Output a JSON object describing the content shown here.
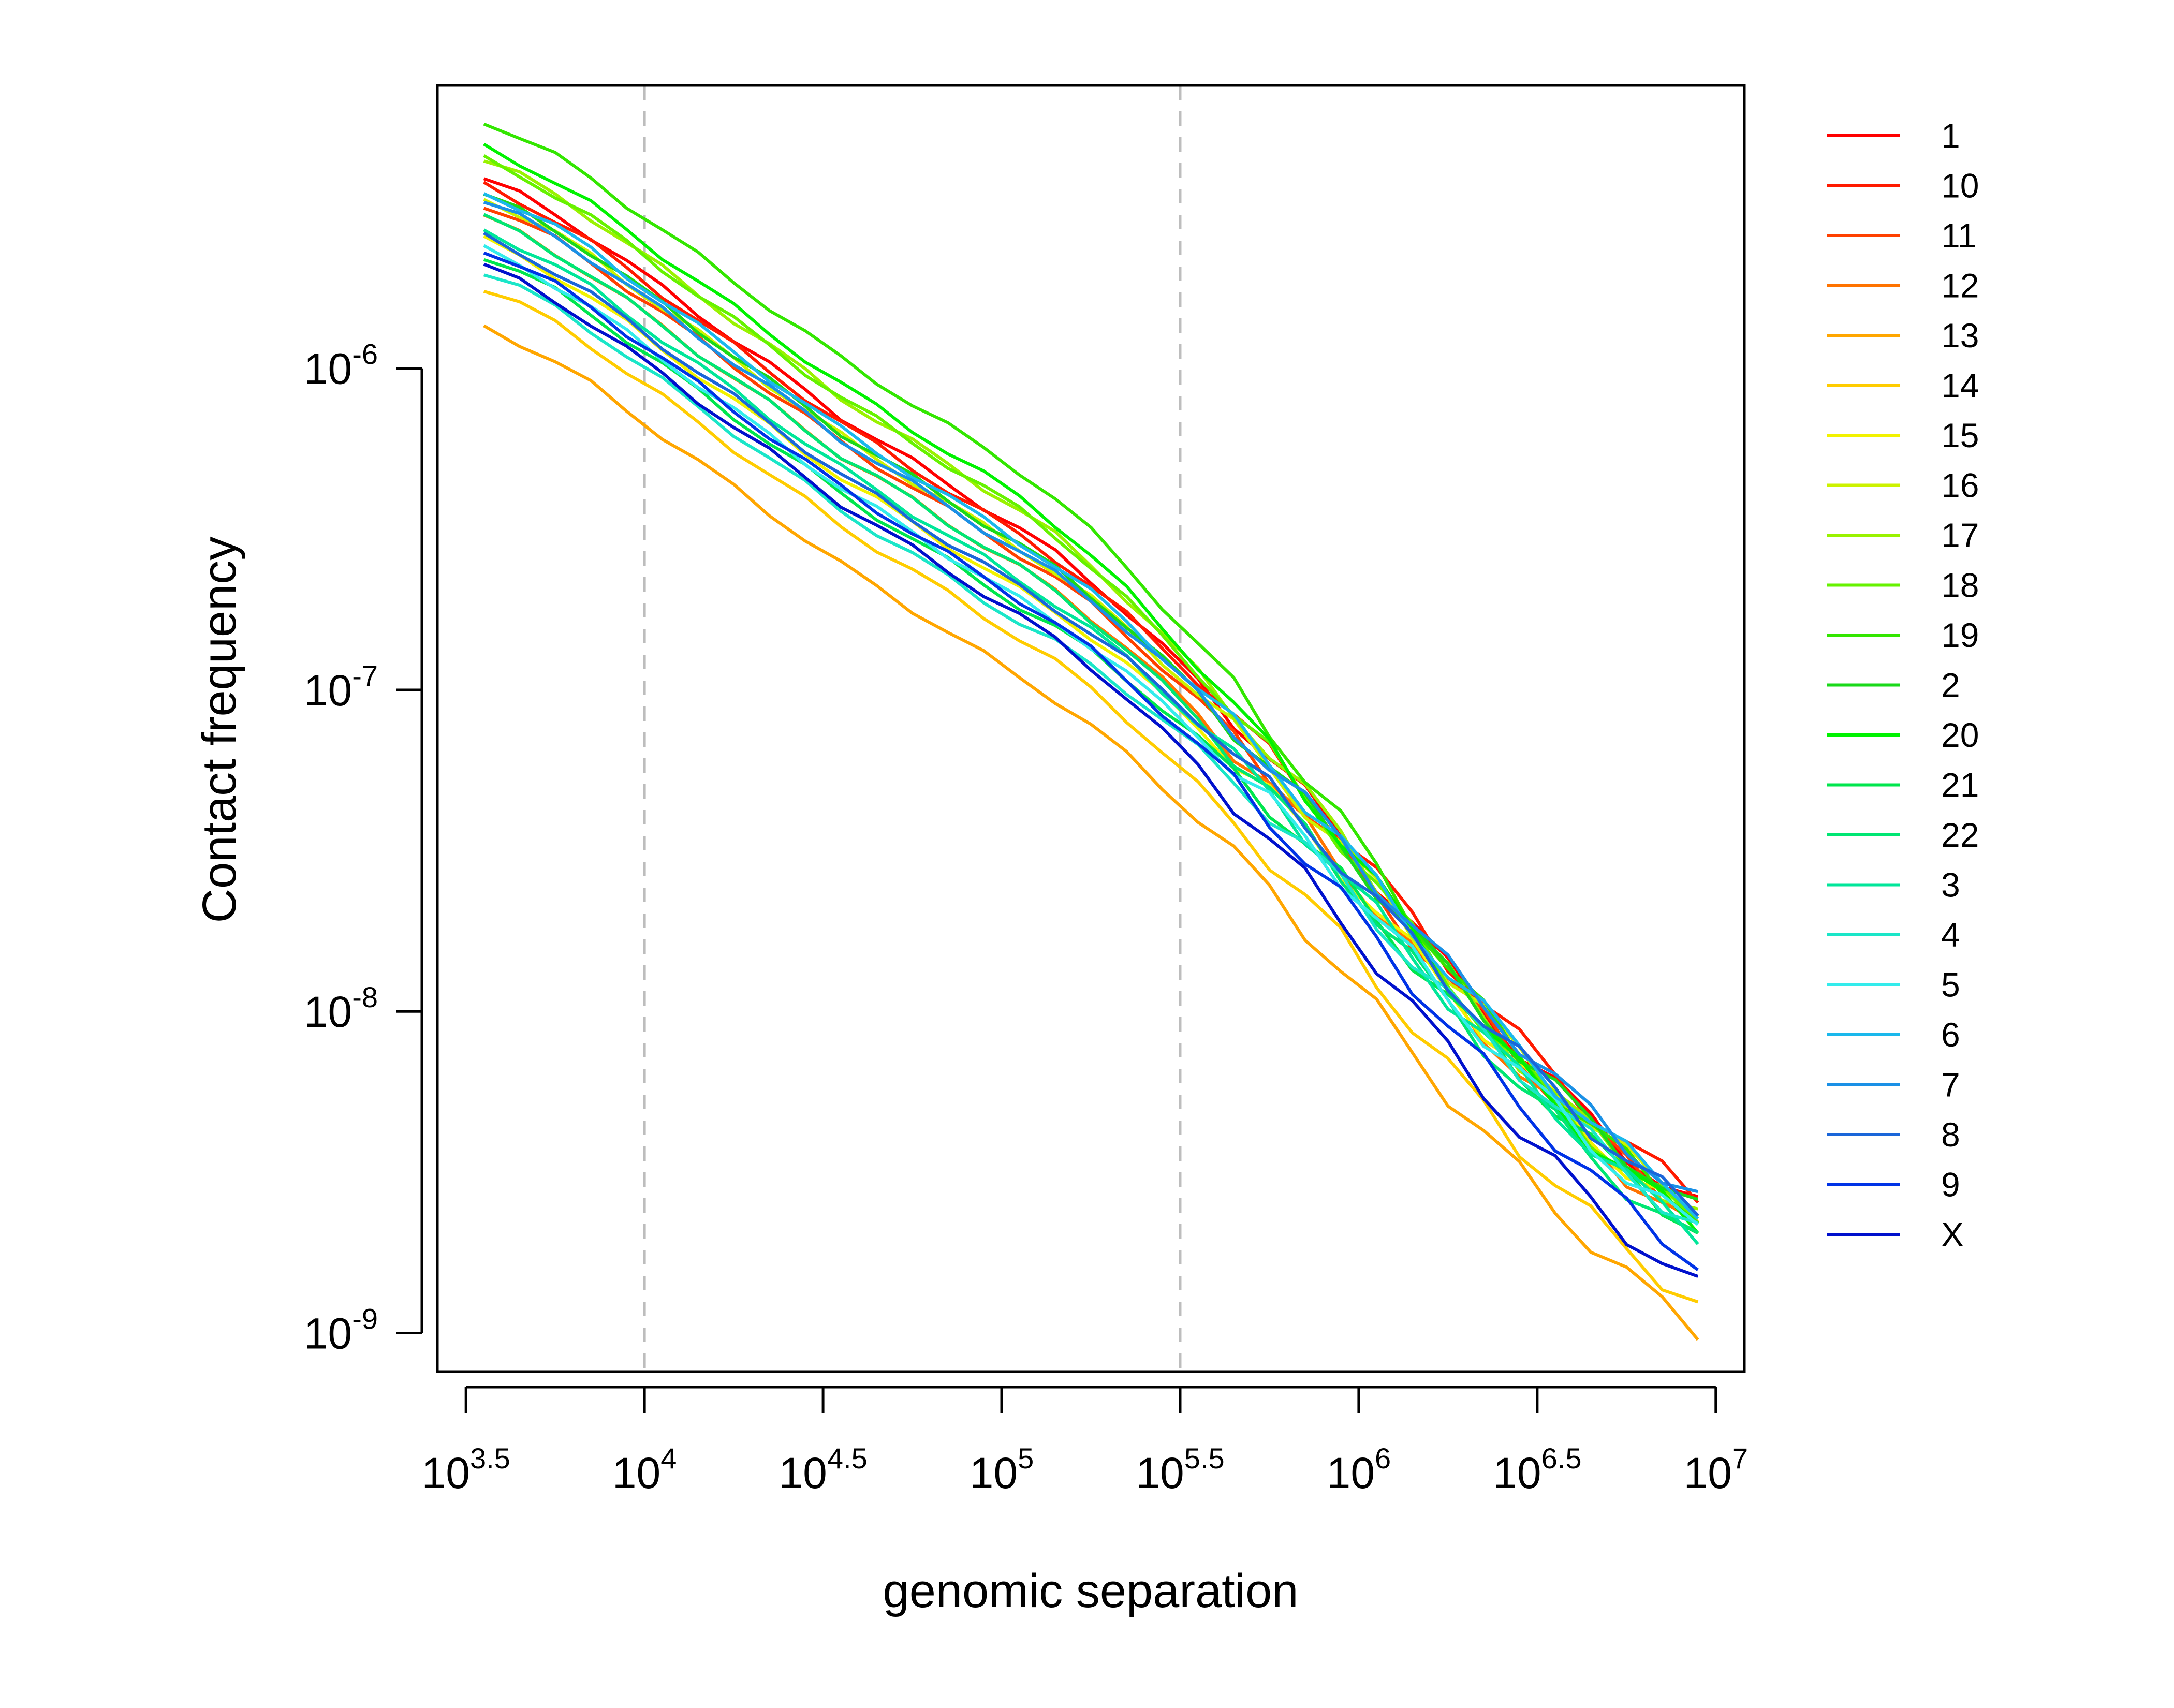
{
  "chart_data": {
    "type": "line",
    "title": "",
    "xlabel": "genomic separation",
    "ylabel": "Contact frequency",
    "x_scale": "log10",
    "y_scale": "log10",
    "xlim_log10": [
      3.42,
      7.08
    ],
    "ylim_log10": [
      -9.12,
      -5.12
    ],
    "x_ticks_log10": [
      3.5,
      4,
      4.5,
      5,
      5.5,
      6,
      6.5,
      7
    ],
    "x_tick_labels": [
      {
        "base": "10",
        "exp": "3.5"
      },
      {
        "base": "10",
        "exp": "4"
      },
      {
        "base": "10",
        "exp": "4.5"
      },
      {
        "base": "10",
        "exp": "5"
      },
      {
        "base": "10",
        "exp": "5.5"
      },
      {
        "base": "10",
        "exp": "6"
      },
      {
        "base": "10",
        "exp": "6.5"
      },
      {
        "base": "10",
        "exp": "7"
      }
    ],
    "y_ticks_log10": [
      -6,
      -7,
      -8,
      -9
    ],
    "y_tick_labels": [
      {
        "base": "10",
        "exp": "-6"
      },
      {
        "base": "10",
        "exp": "-7"
      },
      {
        "base": "10",
        "exp": "-8"
      },
      {
        "base": "10",
        "exp": "-9"
      }
    ],
    "reference_lines_x_log10": [
      4,
      5.5
    ],
    "reference_line_color": "#bdbdbd",
    "legend_position": "right",
    "x_log10": [
      3.55,
      3.65,
      3.75,
      3.85,
      3.95,
      4.05,
      4.15,
      4.25,
      4.35,
      4.45,
      4.55,
      4.65,
      4.75,
      4.85,
      4.95,
      5.05,
      5.15,
      5.25,
      5.35,
      5.45,
      5.55,
      5.65,
      5.75,
      5.85,
      5.95,
      6.05,
      6.15,
      6.25,
      6.35,
      6.45,
      6.55,
      6.65,
      6.75,
      6.85,
      6.95
    ],
    "series": [
      {
        "name": "1",
        "color": "#ff0000",
        "offset": 0.14,
        "tail": 0.05
      },
      {
        "name": "10",
        "color": "#ff1a00",
        "offset": 0.12,
        "tail": 0.08
      },
      {
        "name": "11",
        "color": "#ff4000",
        "offset": 0.06,
        "tail": 0.02
      },
      {
        "name": "12",
        "color": "#ff7300",
        "offset": 0.02,
        "tail": -0.02
      },
      {
        "name": "13",
        "color": "#ffa600",
        "offset": -0.32,
        "tail": -0.33
      },
      {
        "name": "14",
        "color": "#ffcc00",
        "offset": -0.2,
        "tail": -0.25
      },
      {
        "name": "15",
        "color": "#f2f200",
        "offset": -0.05,
        "tail": 0.0
      },
      {
        "name": "16",
        "color": "#ccf200",
        "offset": 0.08,
        "tail": 0.04
      },
      {
        "name": "17",
        "color": "#99f200",
        "offset": 0.2,
        "tail": 0.02
      },
      {
        "name": "18",
        "color": "#66f200",
        "offset": 0.2,
        "tail": 0.0
      },
      {
        "name": "19",
        "color": "#33e600",
        "offset": 0.32,
        "tail": 0.03
      },
      {
        "name": "2",
        "color": "#1ad91a",
        "offset": 0.09,
        "tail": 0.04
      },
      {
        "name": "20",
        "color": "#00f200",
        "offset": 0.24,
        "tail": -0.01
      },
      {
        "name": "21",
        "color": "#00e64d",
        "offset": -0.1,
        "tail": -0.02
      },
      {
        "name": "22",
        "color": "#00e673",
        "offset": 0.02,
        "tail": -0.06
      },
      {
        "name": "3",
        "color": "#00e699",
        "offset": -0.02,
        "tail": -0.03
      },
      {
        "name": "4",
        "color": "#1ae6c8",
        "offset": -0.15,
        "tail": -0.01
      },
      {
        "name": "5",
        "color": "#33ecec",
        "offset": -0.08,
        "tail": -0.02
      },
      {
        "name": "6",
        "color": "#1ab8ec",
        "offset": 0.1,
        "tail": 0.05
      },
      {
        "name": "7",
        "color": "#1a90e6",
        "offset": 0.07,
        "tail": 0.07
      },
      {
        "name": "8",
        "color": "#1a66d9",
        "offset": -0.04,
        "tail": 0.03
      },
      {
        "name": "9",
        "color": "#0033e6",
        "offset": -0.08,
        "tail": -0.12
      },
      {
        "name": "X",
        "color": "#0010cc",
        "offset": -0.13,
        "tail": -0.2
      }
    ],
    "base_curve_log10": [
      -5.55,
      -5.6,
      -5.66,
      -5.73,
      -5.81,
      -5.89,
      -5.97,
      -6.05,
      -6.13,
      -6.21,
      -6.29,
      -6.36,
      -6.43,
      -6.5,
      -6.57,
      -6.64,
      -6.71,
      -6.79,
      -6.88,
      -6.98,
      -7.08,
      -7.19,
      -7.3,
      -7.42,
      -7.54,
      -7.67,
      -7.8,
      -7.93,
      -8.05,
      -8.17,
      -8.28,
      -8.39,
      -8.49,
      -8.58,
      -8.66
    ]
  }
}
